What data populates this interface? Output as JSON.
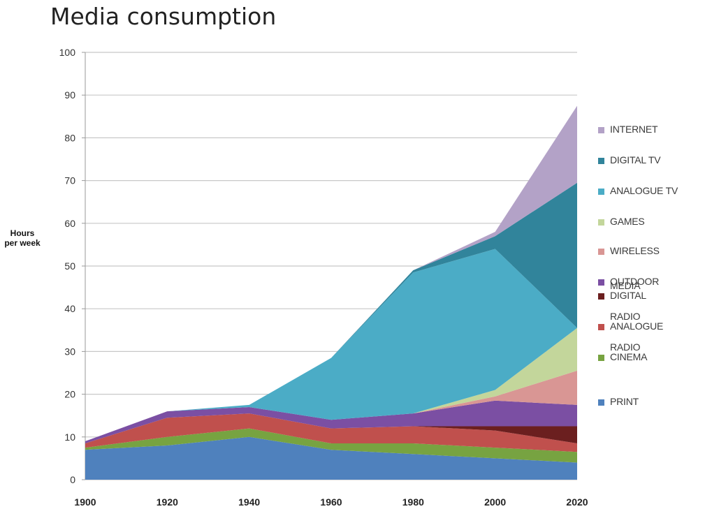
{
  "title": "Media consumption",
  "chart_data": {
    "type": "area",
    "stacked": true,
    "x": [
      1900,
      1920,
      1940,
      1960,
      1980,
      2000,
      2020
    ],
    "ylabel": "Hours\nper week",
    "ylim": [
      0,
      100
    ],
    "yticks": [
      0,
      10,
      20,
      30,
      40,
      50,
      60,
      70,
      80,
      90,
      100
    ],
    "grid": true,
    "legend_position": "right",
    "series": [
      {
        "name": "PRINT",
        "color": "#4f81bd",
        "values": [
          7,
          8,
          10,
          7,
          6,
          5,
          4
        ]
      },
      {
        "name": "CINEMA",
        "color": "#77a341",
        "values": [
          0.5,
          2,
          2,
          1.5,
          2.5,
          2.5,
          2.5
        ]
      },
      {
        "name": "ANALOGUE\nRADIO",
        "color": "#c0504d",
        "values": [
          1,
          4.5,
          3.5,
          3.5,
          4,
          4,
          2
        ]
      },
      {
        "name": "DIGITAL\nRADIO",
        "color": "#6b1f1f",
        "values": [
          0,
          0,
          0,
          0,
          0,
          1,
          4
        ]
      },
      {
        "name": "MEDIA\nOUTDOOR",
        "color": "#7b4fa3",
        "values": [
          0.5,
          1.5,
          1.5,
          2,
          3,
          6,
          5
        ]
      },
      {
        "name": "WIRELESS",
        "color": "#d99694",
        "values": [
          0,
          0,
          0,
          0,
          0,
          1,
          8
        ]
      },
      {
        "name": "GAMES",
        "color": "#c3d69b",
        "values": [
          0,
          0,
          0,
          0,
          0,
          1.5,
          10
        ]
      },
      {
        "name": "ANALOGUE TV",
        "color": "#4bacc6",
        "values": [
          0,
          0,
          0.5,
          14.5,
          33,
          33,
          0
        ]
      },
      {
        "name": "DIGITAL TV",
        "color": "#31849b",
        "values": [
          0,
          0,
          0,
          0,
          0.5,
          3,
          34
        ]
      },
      {
        "name": "INTERNET",
        "color": "#b3a2c7",
        "values": [
          0,
          0,
          0,
          0,
          0,
          1,
          18
        ]
      }
    ],
    "legend_order": [
      "INTERNET",
      "DIGITAL TV",
      "ANALOGUE TV",
      "GAMES",
      "WIRELESS",
      "MEDIA\nOUTDOOR",
      "DIGITAL\nRADIO",
      "ANALOGUE\nRADIO",
      "CINEMA",
      "PRINT"
    ],
    "legend_lines": [
      [
        "INTERNET"
      ],
      [
        "DIGITAL TV"
      ],
      [
        "ANALOGUE TV"
      ],
      [
        "GAMES"
      ],
      [
        "WIRELESS"
      ],
      [
        "OUTDOOR"
      ],
      [
        "MEDIA",
        "DIGITAL"
      ],
      [
        "RADIO",
        "ANALOGUE"
      ],
      [
        "RADIO",
        "CINEMA"
      ],
      [
        "PRINT"
      ]
    ],
    "legend_swatch_colors": [
      "#b3a2c7",
      "#31849b",
      "#4bacc6",
      "#c3d69b",
      "#d99694",
      "#7b4fa3",
      "#6b1f1f",
      "#c0504d",
      "#77a341",
      "#4f81bd"
    ]
  }
}
